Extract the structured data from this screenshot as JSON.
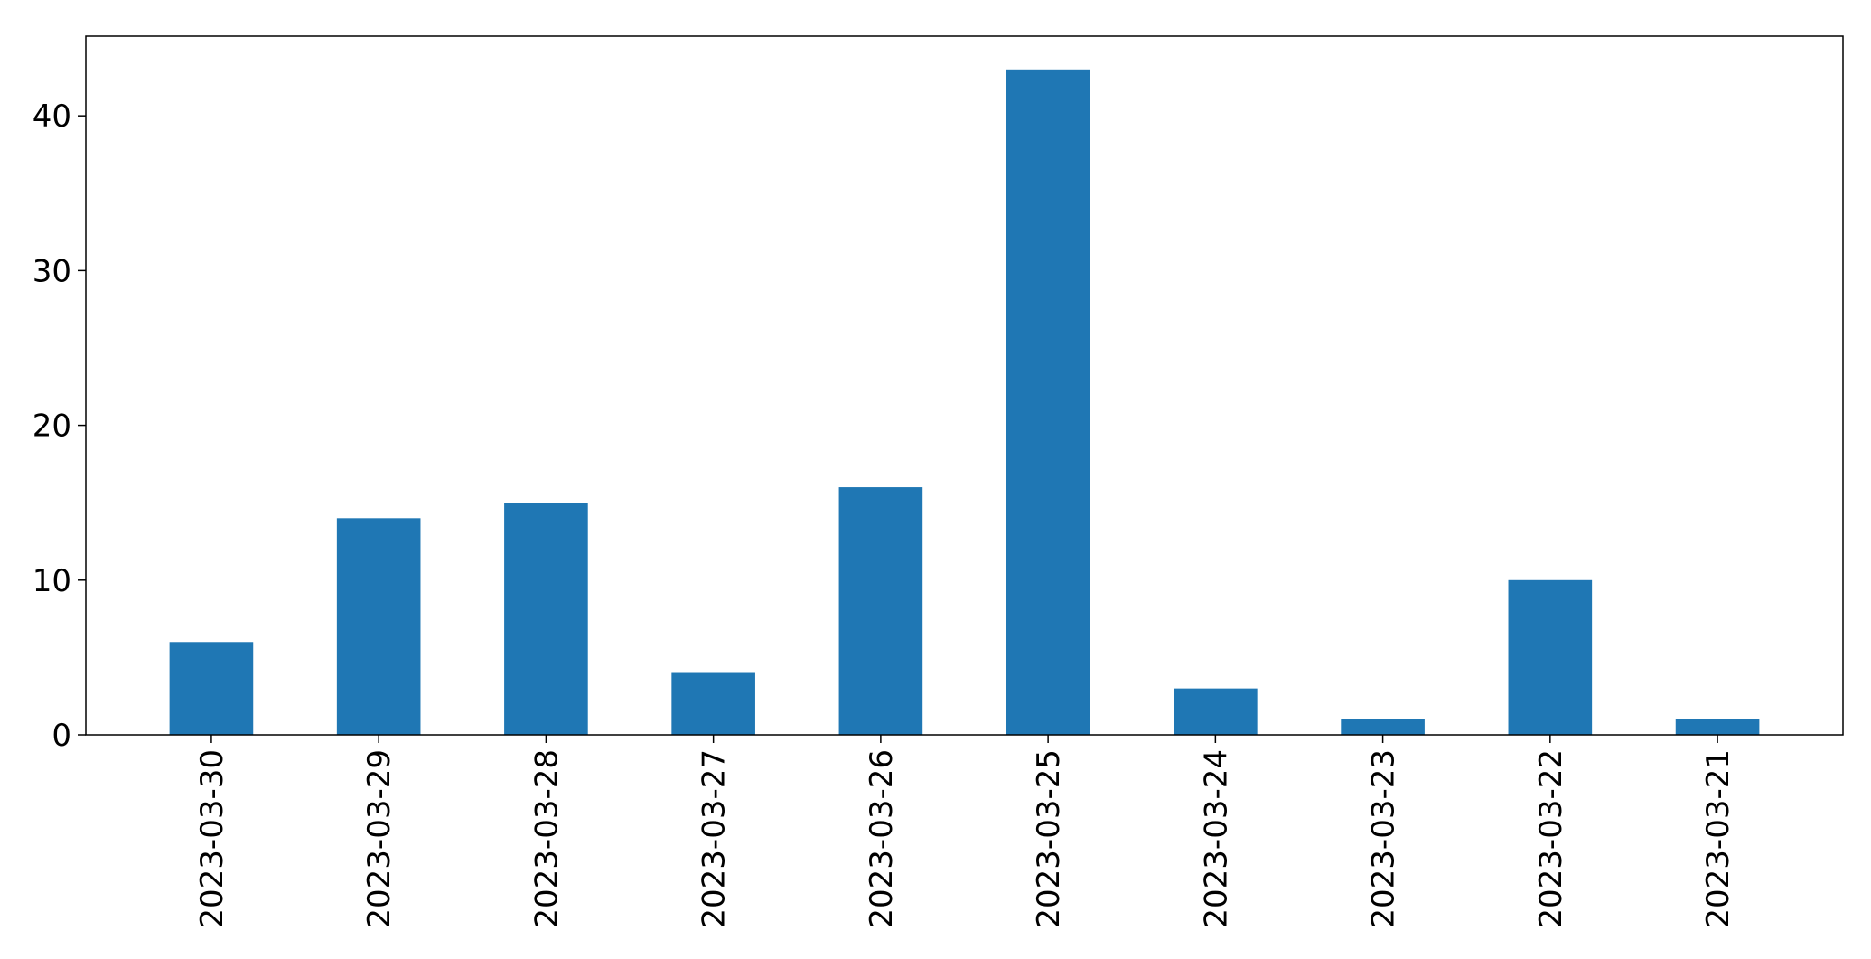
{
  "chart_data": {
    "type": "bar",
    "categories": [
      "2023-03-30",
      "2023-03-29",
      "2023-03-28",
      "2023-03-27",
      "2023-03-26",
      "2023-03-25",
      "2023-03-24",
      "2023-03-23",
      "2023-03-22",
      "2023-03-21"
    ],
    "values": [
      6,
      14,
      15,
      4,
      16,
      43,
      3,
      1,
      10,
      1
    ],
    "title": "",
    "xlabel": "",
    "ylabel": "",
    "ylim": [
      0,
      45.15
    ],
    "yticks": [
      0,
      10,
      20,
      30,
      40
    ],
    "grid": false,
    "legend": "none",
    "bar_color": "#1f77b4",
    "axis_color": "#000000"
  }
}
